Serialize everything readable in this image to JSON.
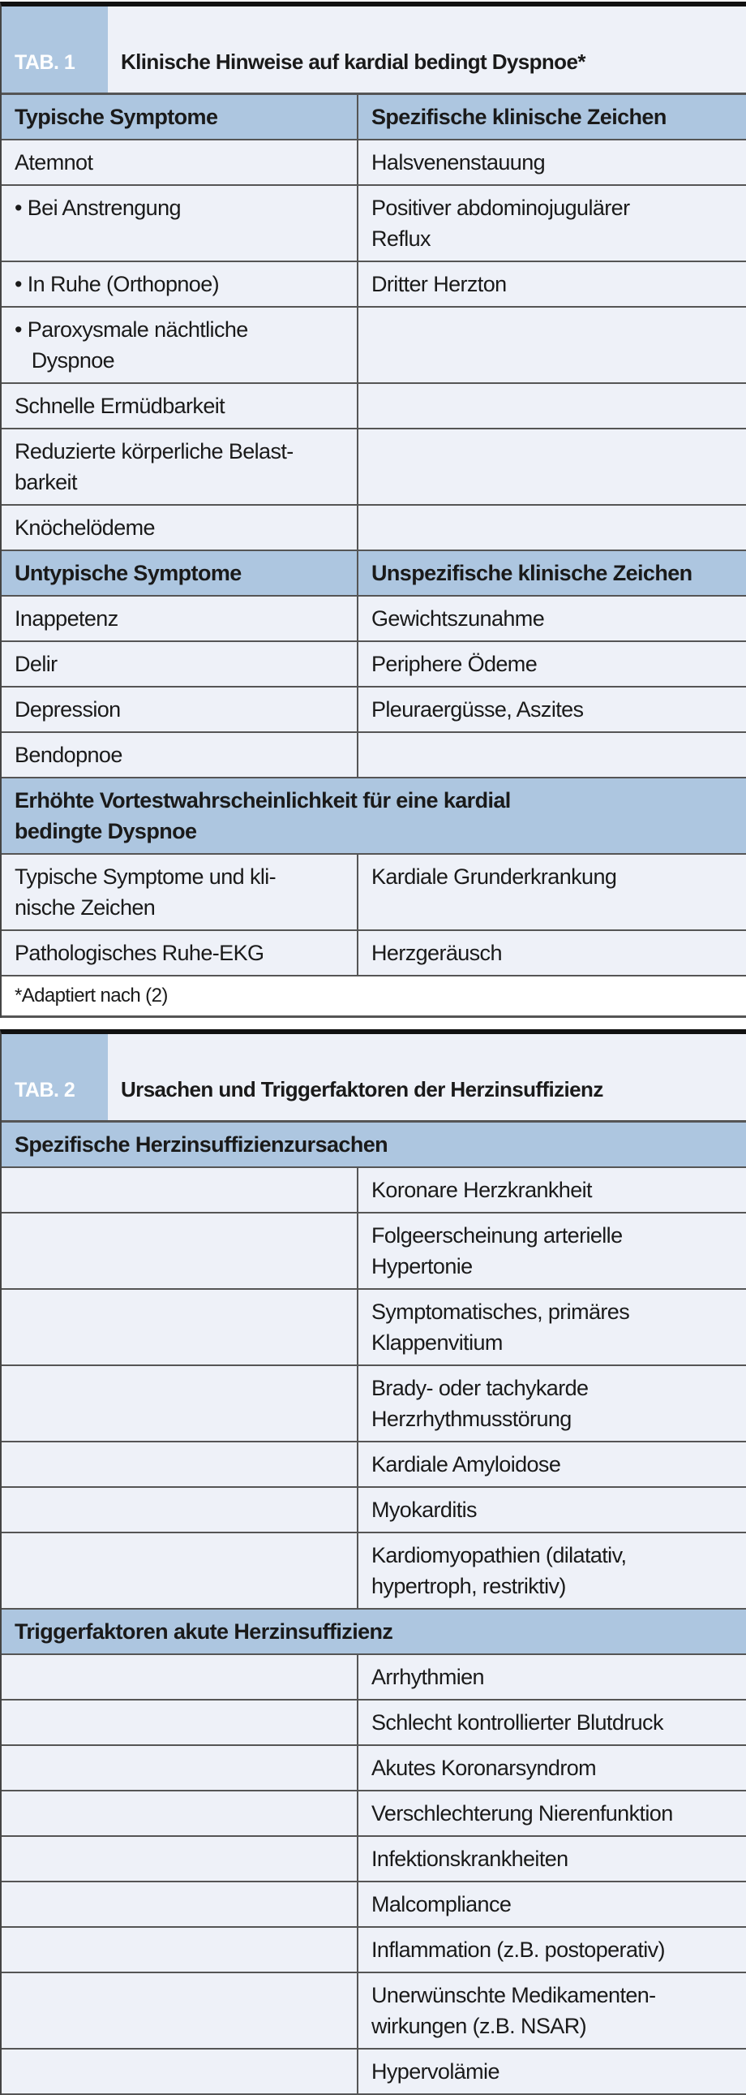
{
  "colors": {
    "header_blue": "#adc6e0",
    "cell_bg": "#eef1f8"
  },
  "table1": {
    "tag": "TAB. 1",
    "title": "Klinische Hinweise auf kardial bedingt Dyspnoe*",
    "rows": [
      {
        "type": "sec",
        "left": "Typische Symptome",
        "right": "Spezifische klinische Zeichen"
      },
      {
        "left": "Atemnot",
        "right": "Halsvenenstauung"
      },
      {
        "left": "• Bei Anstrengung",
        "right": "Positiver abdominojugulärer\nReflux"
      },
      {
        "left": "• In Ruhe (Orthopnoe)",
        "right": "Dritter Herzton"
      },
      {
        "left": "• Paroxysmale nächtliche\n   Dyspnoe",
        "right": ""
      },
      {
        "left": "Schnelle Ermüdbarkeit",
        "right": ""
      },
      {
        "left": "Reduzierte körperliche Belast-\nbarkeit",
        "right": ""
      },
      {
        "left": "Knöchelödeme",
        "right": ""
      },
      {
        "type": "sec",
        "left": "Untypische Symptome",
        "right": "Unspezifische klinische Zeichen"
      },
      {
        "left": "Inappetenz",
        "right": "Gewichtszunahme"
      },
      {
        "left": "Delir",
        "right": "Periphere Ödeme"
      },
      {
        "left": "Depression",
        "right": "Pleuraergüsse, Aszites"
      },
      {
        "left": "Bendopnoe",
        "right": ""
      },
      {
        "type": "secfull",
        "text": "Erhöhte Vortestwahrscheinlichkeit für eine kardial\nbedingte Dyspnoe"
      },
      {
        "left": "Typische Symptome und kli-\nnische Zeichen",
        "right": "Kardiale Grunderkrankung"
      },
      {
        "left": "Pathologisches Ruhe-EKG",
        "right": "Herzgeräusch"
      }
    ],
    "footnote": "*Adaptiert nach (2)"
  },
  "table2": {
    "tag": "TAB. 2",
    "title": "Ursachen und Triggerfaktoren der Herzinsuffizienz",
    "rows": [
      {
        "type": "secfull",
        "text": "Spezifische Herzinsuffizienzursachen"
      },
      {
        "left": "",
        "right": "Koronare Herzkrankheit"
      },
      {
        "left": "",
        "right": "Folgeerscheinung arterielle\nHypertonie"
      },
      {
        "left": "",
        "right": "Symptomatisches, primäres\nKlappenvitium"
      },
      {
        "left": "",
        "right": "Brady- oder tachykarde\nHerzrhythmusstörung"
      },
      {
        "left": "",
        "right": "Kardiale Amyloidose"
      },
      {
        "left": "",
        "right": "Myokarditis"
      },
      {
        "left": "",
        "right": "Kardiomyopathien (dilatativ,\nhypertroph, restriktiv)"
      },
      {
        "type": "secfull",
        "text": "Triggerfaktoren akute Herzinsuffizienz"
      },
      {
        "left": "",
        "right": "Arrhythmien"
      },
      {
        "left": "",
        "right": "Schlecht kontrollierter Blutdruck"
      },
      {
        "left": "",
        "right": "Akutes Koronarsyndrom"
      },
      {
        "left": "",
        "right": "Verschlechterung Nierenfunktion"
      },
      {
        "left": "",
        "right": "Infektionskrankheiten"
      },
      {
        "left": "",
        "right": "Malcompliance"
      },
      {
        "left": "",
        "right": "Inflammation (z.B. postoperativ)"
      },
      {
        "left": "",
        "right": "Unerwünschte Medikamenten-\nwirkungen (z.B. NSAR)"
      },
      {
        "left": "",
        "right": "Hypervolämie"
      }
    ]
  }
}
